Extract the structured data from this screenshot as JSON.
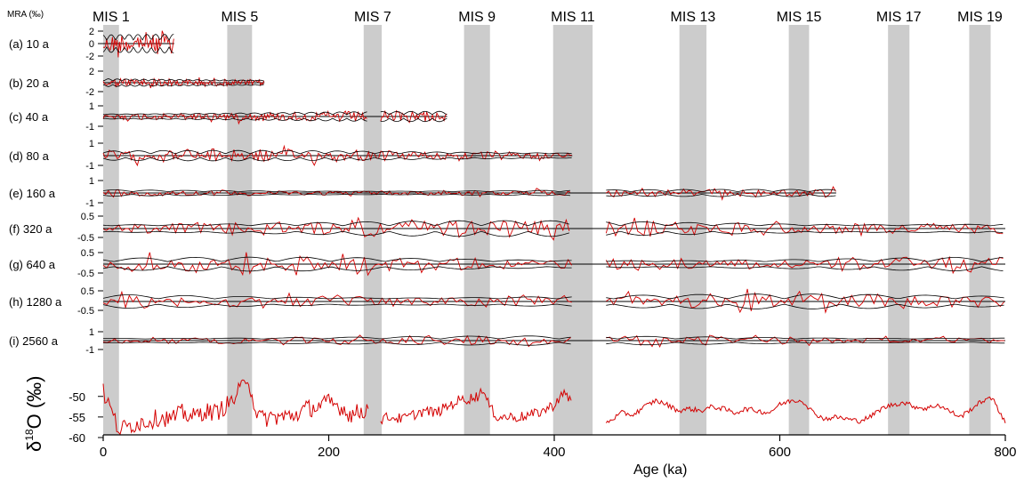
{
  "chart_data": {
    "type": "line",
    "title": "",
    "xlabel": "Age (ka)",
    "mra_label": "MRA (‰)",
    "d18o_label_delta": "δ",
    "d18o_label_sup": "18",
    "d18o_label_rest": "O (‰)",
    "xlim": [
      0,
      800
    ],
    "x_ticks": [
      {
        "v": 0,
        "label": "0"
      },
      {
        "v": 200,
        "label": "200"
      },
      {
        "v": 400,
        "label": "400"
      },
      {
        "v": 600,
        "label": "600"
      },
      {
        "v": 800,
        "label": "800"
      }
    ],
    "mis_bands": [
      {
        "label": "MIS 1",
        "start": 0,
        "end": 14
      },
      {
        "label": "MIS 5",
        "start": 110,
        "end": 132
      },
      {
        "label": "MIS 7",
        "start": 231,
        "end": 247
      },
      {
        "label": "MIS 9",
        "start": 320,
        "end": 343
      },
      {
        "label": "MIS 11",
        "start": 399,
        "end": 434
      },
      {
        "label": "MIS 13",
        "start": 511,
        "end": 535
      },
      {
        "label": "MIS 15",
        "start": 608,
        "end": 626
      },
      {
        "label": "MIS 17",
        "start": 696,
        "end": 715
      },
      {
        "label": "MIS 19",
        "start": 768,
        "end": 787
      }
    ],
    "panels": [
      {
        "label": "(a) 10 a",
        "tick_labels": [
          "2",
          "0",
          "-2"
        ],
        "segments": [
          [
            0,
            63
          ]
        ],
        "amplitude": 1.0,
        "density": 1.0
      },
      {
        "label": "(b) 20 a",
        "tick_labels": [
          "2",
          "-2"
        ],
        "segments": [
          [
            0,
            143
          ]
        ],
        "amplitude": 0.55,
        "density": 1.0
      },
      {
        "label": "(c) 40 a",
        "tick_labels": [
          "1",
          "-1"
        ],
        "segments": [
          [
            0,
            235
          ],
          [
            246,
            305
          ]
        ],
        "amplitude": 0.65,
        "density": 0.9
      },
      {
        "label": "(d) 80 a",
        "tick_labels": [
          "1",
          "-1"
        ],
        "segments": [
          [
            0,
            416
          ]
        ],
        "amplitude": 0.6,
        "density": 0.7
      },
      {
        "label": "(e) 160 a",
        "tick_labels": [
          "1",
          "-1"
        ],
        "segments": [
          [
            0,
            415
          ],
          [
            446,
            650
          ]
        ],
        "amplitude": 0.45,
        "density": 0.5
      },
      {
        "label": "(f) 320 a",
        "tick_labels": [
          "0.5",
          "-0.5"
        ],
        "segments": [
          [
            0,
            416
          ],
          [
            446,
            800
          ]
        ],
        "amplitude": 0.85,
        "density": 0.3
      },
      {
        "label": "(g) 640 a",
        "tick_labels": [
          "0.5",
          "-0.5"
        ],
        "segments": [
          [
            0,
            416
          ],
          [
            446,
            800
          ]
        ],
        "amplitude": 0.75,
        "density": 0.15
      },
      {
        "label": "(h) 1280 a",
        "tick_labels": [
          "0.5",
          "-0.5"
        ],
        "segments": [
          [
            0,
            416
          ],
          [
            446,
            800
          ]
        ],
        "amplitude": 0.8,
        "density": 0.1
      },
      {
        "label": "(i) 2560 a",
        "tick_labels": [
          "1",
          "-1"
        ],
        "segments": [
          [
            0,
            416
          ],
          [
            446,
            800
          ]
        ],
        "amplitude": 0.5,
        "density": 0.06
      }
    ],
    "d18o": {
      "ylim": [
        -60,
        -44
      ],
      "y_ticks": [
        "-50",
        "-55",
        "-60"
      ],
      "y_tick_values": [
        -50,
        -55,
        -60
      ],
      "segments": [
        [
          0,
          235
        ],
        [
          246,
          415
        ],
        [
          446,
          800
        ]
      ],
      "points": [
        [
          0,
          -49
        ],
        [
          3,
          -51
        ],
        [
          6,
          -52.5
        ],
        [
          9,
          -55
        ],
        [
          12,
          -57
        ],
        [
          15,
          -58
        ],
        [
          20,
          -57.5
        ],
        [
          30,
          -56.5
        ],
        [
          40,
          -56
        ],
        [
          50,
          -55
        ],
        [
          60,
          -55.5
        ],
        [
          70,
          -54
        ],
        [
          80,
          -55
        ],
        [
          90,
          -53.5
        ],
        [
          100,
          -54
        ],
        [
          110,
          -52
        ],
        [
          115,
          -51
        ],
        [
          120,
          -49
        ],
        [
          125,
          -47
        ],
        [
          128,
          -45
        ],
        [
          130,
          -47
        ],
        [
          132,
          -50
        ],
        [
          135,
          -53
        ],
        [
          140,
          -55.5
        ],
        [
          150,
          -55
        ],
        [
          160,
          -55
        ],
        [
          170,
          -54.5
        ],
        [
          180,
          -53
        ],
        [
          190,
          -52.5
        ],
        [
          200,
          -51.5
        ],
        [
          210,
          -52.5
        ],
        [
          220,
          -54.5
        ],
        [
          230,
          -53.5
        ],
        [
          235,
          -53
        ],
        [
          246,
          -55.5
        ],
        [
          255,
          -55
        ],
        [
          265,
          -55.5
        ],
        [
          275,
          -54.5
        ],
        [
          285,
          -53.5
        ],
        [
          295,
          -54
        ],
        [
          305,
          -52.5
        ],
        [
          315,
          -51
        ],
        [
          325,
          -50.5
        ],
        [
          332,
          -50
        ],
        [
          336,
          -48
        ],
        [
          340,
          -51
        ],
        [
          345,
          -53.5
        ],
        [
          350,
          -55
        ],
        [
          360,
          -55
        ],
        [
          370,
          -55
        ],
        [
          380,
          -54.5
        ],
        [
          390,
          -53.5
        ],
        [
          400,
          -52
        ],
        [
          405,
          -50
        ],
        [
          410,
          -49.5
        ],
        [
          415,
          -51
        ],
        [
          446,
          -56.5
        ],
        [
          460,
          -54
        ],
        [
          470,
          -54.5
        ],
        [
          480,
          -52.5
        ],
        [
          490,
          -51
        ],
        [
          500,
          -52
        ],
        [
          510,
          -53.5
        ],
        [
          520,
          -53
        ],
        [
          530,
          -53.5
        ],
        [
          540,
          -52.5
        ],
        [
          550,
          -53
        ],
        [
          560,
          -54
        ],
        [
          570,
          -53
        ],
        [
          580,
          -53.5
        ],
        [
          590,
          -54
        ],
        [
          600,
          -52
        ],
        [
          610,
          -51
        ],
        [
          620,
          -51
        ],
        [
          630,
          -54
        ],
        [
          640,
          -55.5
        ],
        [
          650,
          -55
        ],
        [
          660,
          -55.5
        ],
        [
          670,
          -56
        ],
        [
          680,
          -55
        ],
        [
          690,
          -53
        ],
        [
          700,
          -52
        ],
        [
          710,
          -51.5
        ],
        [
          720,
          -52.5
        ],
        [
          730,
          -53
        ],
        [
          740,
          -52
        ],
        [
          750,
          -53.5
        ],
        [
          760,
          -55
        ],
        [
          770,
          -53
        ],
        [
          780,
          -51
        ],
        [
          790,
          -50.5
        ],
        [
          795,
          -54
        ],
        [
          800,
          -56.5
        ]
      ]
    }
  }
}
